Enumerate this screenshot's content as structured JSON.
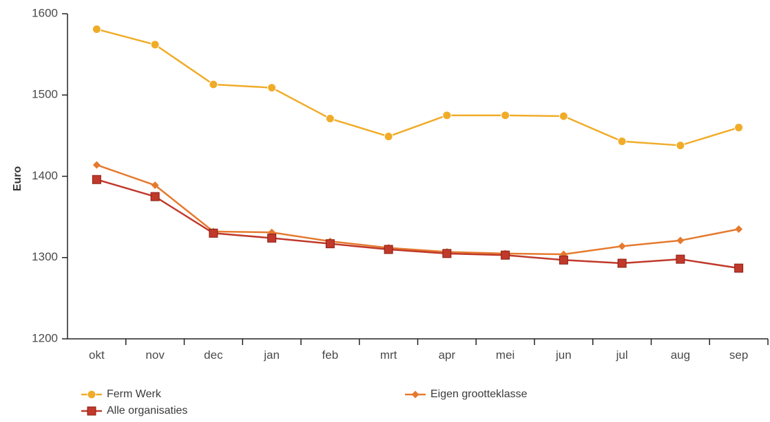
{
  "chart_data": {
    "type": "line",
    "title": "",
    "xlabel": "",
    "ylabel": "Euro",
    "categories": [
      "okt",
      "nov",
      "dec",
      "jan",
      "feb",
      "mrt",
      "apr",
      "mei",
      "jun",
      "jul",
      "aug",
      "sep"
    ],
    "ylim": [
      1200,
      1600
    ],
    "yticks": [
      "1200",
      "1300",
      "1400",
      "1500",
      "1600"
    ],
    "grid": "off",
    "legend_position": "bottom",
    "series": [
      {
        "name": "Ferm Werk",
        "color": "#f0ac28",
        "marker": "circle",
        "values": [
          1581,
          1562,
          1513,
          1509,
          1471,
          1449,
          1475,
          1475,
          1474,
          1443,
          1438,
          1460
        ]
      },
      {
        "name": "Eigen grootteklasse",
        "color": "#e57a2e",
        "marker": "diamond",
        "values": [
          1414,
          1389,
          1332,
          1331,
          1320,
          1312,
          1307,
          1305,
          1304,
          1314,
          1321,
          1335
        ]
      },
      {
        "name": "Alle organisaties",
        "color": "#c0392b",
        "marker": "square",
        "values": [
          1396,
          1375,
          1330,
          1324,
          1317,
          1310,
          1305,
          1303,
          1297,
          1293,
          1298,
          1287
        ]
      }
    ]
  }
}
